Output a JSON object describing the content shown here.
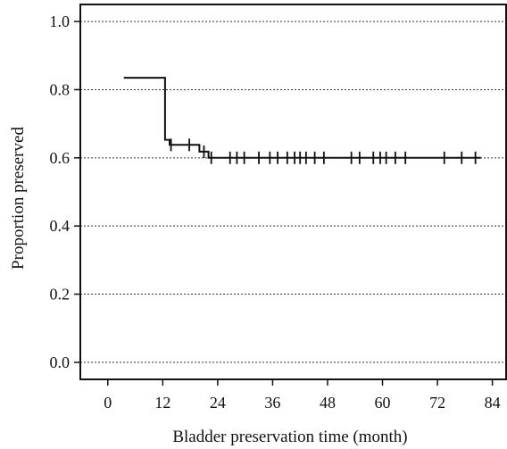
{
  "chart_data": {
    "type": "line",
    "xlabel": "Bladder preservation time (month)",
    "ylabel": "Proportion preserved",
    "xlim": [
      -6,
      87
    ],
    "ylim": [
      -0.05,
      1.05
    ],
    "x_ticks": [
      0,
      12,
      24,
      36,
      48,
      60,
      72,
      84
    ],
    "y_ticks": [
      0.0,
      0.2,
      0.4,
      0.6,
      0.8,
      1.0
    ],
    "x_tick_labels": [
      "0",
      "12",
      "24",
      "36",
      "48",
      "60",
      "72",
      "84"
    ],
    "y_tick_labels": [
      "0.0",
      "0.2",
      "0.4",
      "0.6",
      "0.8",
      "1.0"
    ],
    "grid": "horizontal-dashed",
    "series": [
      {
        "step_points": [
          [
            3.5,
            0.835
          ],
          [
            12.5,
            0.835
          ],
          [
            12.5,
            0.653
          ],
          [
            13.5,
            0.653
          ],
          [
            13.5,
            0.638
          ],
          [
            20.0,
            0.638
          ],
          [
            20.0,
            0.618
          ],
          [
            22.0,
            0.618
          ],
          [
            22.0,
            0.6
          ],
          [
            81.5,
            0.6
          ]
        ],
        "censored": [
          [
            13.8,
            0.638
          ],
          [
            17.8,
            0.638
          ],
          [
            21.0,
            0.618
          ],
          [
            22.6,
            0.6
          ],
          [
            26.7,
            0.6
          ],
          [
            28.2,
            0.6
          ],
          [
            29.8,
            0.6
          ],
          [
            33.0,
            0.6
          ],
          [
            35.4,
            0.6
          ],
          [
            37.1,
            0.6
          ],
          [
            39.2,
            0.6
          ],
          [
            40.8,
            0.6
          ],
          [
            42.0,
            0.6
          ],
          [
            43.3,
            0.6
          ],
          [
            45.2,
            0.6
          ],
          [
            47.2,
            0.6
          ],
          [
            53.2,
            0.6
          ],
          [
            55.0,
            0.6
          ],
          [
            58.0,
            0.6
          ],
          [
            59.5,
            0.6
          ],
          [
            60.8,
            0.6
          ],
          [
            62.8,
            0.6
          ],
          [
            65.0,
            0.6
          ],
          [
            73.5,
            0.6
          ],
          [
            77.3,
            0.6
          ],
          [
            80.3,
            0.6
          ]
        ]
      }
    ]
  }
}
